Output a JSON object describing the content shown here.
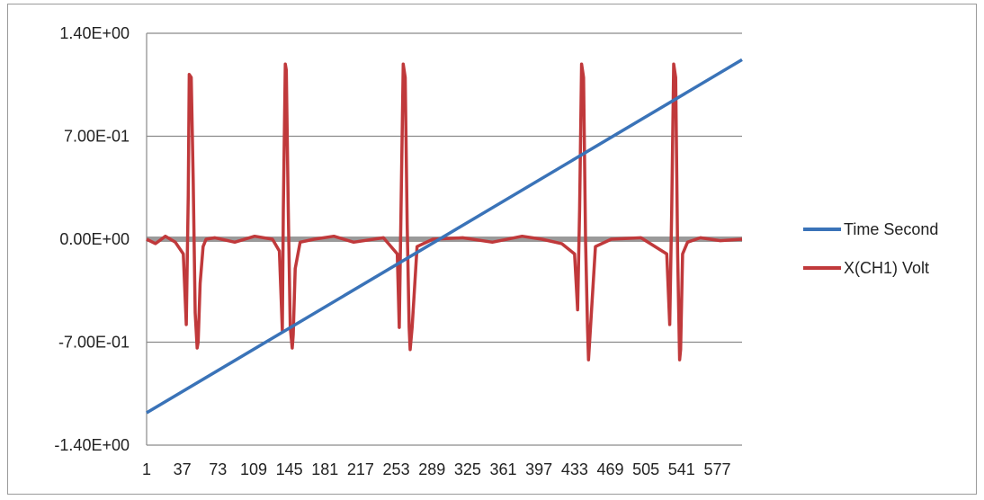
{
  "chart_data": {
    "type": "line",
    "title": "",
    "xlabel": "",
    "ylabel": "",
    "x_tick_labels": [
      "1",
      "37",
      "73",
      "109",
      "145",
      "181",
      "217",
      "253",
      "289",
      "325",
      "361",
      "397",
      "433",
      "469",
      "505",
      "541",
      "577"
    ],
    "y_tick_labels": [
      "1.40E+00",
      "7.00E-01",
      "0.00E+00",
      "-7.00E-01",
      "-1.40E+00"
    ],
    "y_ticks": [
      1.4,
      0.7,
      0.0,
      -0.7,
      -1.4
    ],
    "ylim": [
      -1.4,
      1.4
    ],
    "xlim": [
      1,
      602
    ],
    "grid": true,
    "legend_position": "right",
    "series": [
      {
        "name": "Time Second",
        "color": "#3a73b8",
        "x": [
          1,
          602
        ],
        "y": [
          -1.18,
          1.22
        ]
      },
      {
        "name": "X(CH1) Volt",
        "color": "#c0393b",
        "x": [
          1,
          10,
          20,
          30,
          38,
          41,
          43,
          44,
          46,
          48,
          50,
          52,
          53,
          55,
          58,
          61,
          70,
          90,
          110,
          128,
          135,
          138,
          139,
          141,
          142,
          144,
          146,
          148,
          149,
          151,
          156,
          170,
          190,
          210,
          240,
          254,
          256,
          258,
          260,
          262,
          264,
          266,
          267,
          269,
          274,
          290,
          320,
          350,
          380,
          400,
          420,
          433,
          436,
          438,
          440,
          442,
          444,
          446,
          447,
          449,
          454,
          470,
          500,
          526,
          529,
          531,
          533,
          535,
          537,
          539,
          540,
          542,
          547,
          560,
          580,
          602
        ],
        "y": [
          0.0,
          -0.03,
          0.02,
          -0.02,
          -0.1,
          -0.58,
          0.3,
          1.12,
          1.1,
          0.4,
          -0.5,
          -0.74,
          -0.7,
          -0.3,
          -0.05,
          0.0,
          0.01,
          -0.02,
          0.02,
          0.0,
          -0.08,
          -0.62,
          0.2,
          1.19,
          1.15,
          0.2,
          -0.6,
          -0.74,
          -0.65,
          -0.2,
          -0.02,
          0.0,
          0.02,
          -0.02,
          0.01,
          -0.1,
          -0.6,
          0.3,
          1.19,
          1.1,
          0.1,
          -0.6,
          -0.75,
          -0.6,
          -0.05,
          0.0,
          0.01,
          -0.02,
          0.02,
          0.0,
          -0.03,
          -0.1,
          -0.48,
          0.2,
          1.19,
          1.1,
          0.0,
          -0.6,
          -0.82,
          -0.6,
          -0.05,
          0.0,
          0.01,
          -0.1,
          -0.58,
          0.2,
          1.19,
          1.1,
          -0.1,
          -0.82,
          -0.75,
          -0.1,
          -0.02,
          0.01,
          -0.01,
          0.0
        ]
      }
    ]
  }
}
